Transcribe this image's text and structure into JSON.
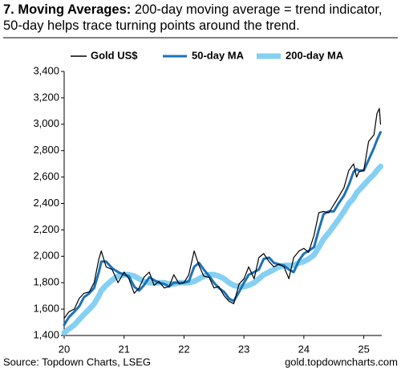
{
  "chart_data": {
    "type": "line",
    "title": "7. Moving Averages:",
    "subtitle": "200-day moving average = trend indicator, 50-day helps trace turning points around the trend.",
    "source": "Source: Topdown Charts, LSEG",
    "website": "gold.topdowncharts.com",
    "x": [
      2020,
      2020.08,
      2020.17,
      2020.25,
      2020.33,
      2020.42,
      2020.5,
      2020.58,
      2020.62,
      2020.7,
      2020.8,
      2020.9,
      2021,
      2021.08,
      2021.17,
      2021.25,
      2021.33,
      2021.42,
      2021.5,
      2021.58,
      2021.67,
      2021.75,
      2021.83,
      2021.92,
      2022,
      2022.08,
      2022.17,
      2022.25,
      2022.33,
      2022.42,
      2022.5,
      2022.58,
      2022.67,
      2022.75,
      2022.83,
      2022.92,
      2023,
      2023.08,
      2023.17,
      2023.25,
      2023.33,
      2023.42,
      2023.5,
      2023.58,
      2023.67,
      2023.75,
      2023.83,
      2023.92,
      2024,
      2024.08,
      2024.17,
      2024.25,
      2024.33,
      2024.42,
      2024.5,
      2024.58,
      2024.67,
      2024.75,
      2024.83,
      2024.88,
      2024.92,
      2025,
      2025.08,
      2025.17,
      2025.22,
      2025.26,
      2025.28
    ],
    "series": [
      {
        "name": "200-day MA",
        "color": "#85d0f2",
        "width": 7,
        "values": [
          1420,
          1450,
          1480,
          1520,
          1560,
          1600,
          1640,
          1700,
          1740,
          1780,
          1820,
          1850,
          1860,
          1860,
          1850,
          1830,
          1810,
          1800,
          1800,
          1800,
          1800,
          1790,
          1790,
          1800,
          1800,
          1800,
          1810,
          1830,
          1850,
          1860,
          1860,
          1850,
          1830,
          1800,
          1780,
          1770,
          1770,
          1780,
          1800,
          1830,
          1860,
          1880,
          1900,
          1920,
          1930,
          1930,
          1930,
          1950,
          1960,
          1980,
          2010,
          2070,
          2130,
          2180,
          2230,
          2280,
          2340,
          2400,
          2440,
          2480,
          2500,
          2540,
          2580,
          2620,
          2650,
          2670,
          2680
        ]
      },
      {
        "name": "50-day MA",
        "color": "#1b72b8",
        "width": 3,
        "values": [
          1480,
          1540,
          1580,
          1620,
          1690,
          1720,
          1760,
          1880,
          1960,
          1960,
          1910,
          1880,
          1860,
          1850,
          1770,
          1740,
          1780,
          1840,
          1820,
          1800,
          1790,
          1770,
          1800,
          1800,
          1800,
          1810,
          1920,
          1950,
          1900,
          1850,
          1800,
          1760,
          1730,
          1680,
          1660,
          1730,
          1800,
          1860,
          1880,
          1900,
          1980,
          1990,
          1950,
          1940,
          1930,
          1900,
          1880,
          1970,
          2020,
          2040,
          2070,
          2200,
          2320,
          2340,
          2340,
          2400,
          2460,
          2540,
          2640,
          2660,
          2650,
          2650,
          2730,
          2820,
          2880,
          2920,
          2940
        ]
      },
      {
        "name": "Gold US$",
        "color": "#000000",
        "width": 1.2,
        "values": [
          1530,
          1580,
          1600,
          1680,
          1720,
          1730,
          1800,
          1980,
          2040,
          1920,
          1900,
          1800,
          1880,
          1830,
          1720,
          1760,
          1840,
          1880,
          1780,
          1810,
          1760,
          1770,
          1860,
          1790,
          1800,
          1860,
          2040,
          1930,
          1850,
          1840,
          1760,
          1770,
          1700,
          1660,
          1640,
          1790,
          1830,
          1920,
          1830,
          1990,
          2020,
          1960,
          1920,
          1940,
          1920,
          1830,
          1990,
          2040,
          2060,
          2030,
          2160,
          2330,
          2340,
          2330,
          2390,
          2450,
          2520,
          2650,
          2700,
          2600,
          2640,
          2650,
          2870,
          2920,
          3080,
          3120,
          3000
        ]
      }
    ],
    "legend_order": [
      2,
      1,
      0
    ],
    "xlim": [
      2020,
      2025.3
    ],
    "xticks": [
      {
        "value": 2020,
        "label": "20"
      },
      {
        "value": 2021,
        "label": "21"
      },
      {
        "value": 2022,
        "label": "22"
      },
      {
        "value": 2023,
        "label": "23"
      },
      {
        "value": 2024,
        "label": "24"
      },
      {
        "value": 2025,
        "label": "25"
      }
    ],
    "ylim": [
      1400,
      3400
    ],
    "yticks": [
      {
        "value": 1400,
        "label": "1,400"
      },
      {
        "value": 1600,
        "label": "1,600"
      },
      {
        "value": 1800,
        "label": "1,800"
      },
      {
        "value": 2000,
        "label": "2,000"
      },
      {
        "value": 2200,
        "label": "2,200"
      },
      {
        "value": 2400,
        "label": "2,400"
      },
      {
        "value": 2600,
        "label": "2,600"
      },
      {
        "value": 2800,
        "label": "2,800"
      },
      {
        "value": 3000,
        "label": "3,000"
      },
      {
        "value": 3200,
        "label": "3,200"
      },
      {
        "value": 3400,
        "label": "3,400"
      }
    ],
    "grid": false
  }
}
